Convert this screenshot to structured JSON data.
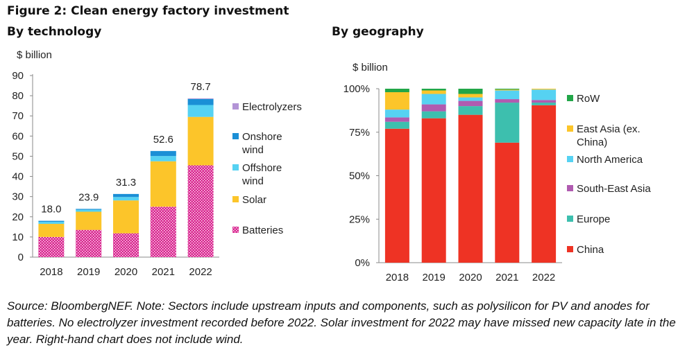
{
  "figure_title": "Figure 2: Clean energy factory investment",
  "source_note": "Source: BloombergNEF. Note: Sectors include upstream inputs and components, such as polysilicon for PV and anodes for batteries. No electrolyzer investment recorded before 2022. Solar investment for 2022 may have missed new capacity late in the year. Right-hand chart does not include wind.",
  "colors": {
    "batteries": "#d9248f",
    "solar": "#fcc52a",
    "offshore": "#56d2f2",
    "onshore": "#1b8fd6",
    "electrolyzers": "#b394d6",
    "china": "#ee3324",
    "europe": "#3dbfae",
    "sea": "#b05bb0",
    "na": "#56d2f2",
    "eastasia": "#fcc52a",
    "row": "#22a648"
  },
  "chart_data": [
    {
      "type": "bar",
      "stacked": true,
      "title": "By technology",
      "ylabel": "$ billion",
      "ylim": [
        0,
        90
      ],
      "yticks": [
        0,
        10,
        20,
        30,
        40,
        50,
        60,
        70,
        80,
        90
      ],
      "categories": [
        "2018",
        "2019",
        "2020",
        "2021",
        "2022"
      ],
      "series": [
        {
          "name": "Batteries",
          "key": "batteries",
          "pattern": true,
          "values": [
            10.0,
            13.5,
            11.8,
            25.0,
            45.5
          ]
        },
        {
          "name": "Solar",
          "key": "solar",
          "values": [
            6.5,
            9.0,
            16.3,
            22.5,
            24.0
          ]
        },
        {
          "name": "Offshore wind",
          "key": "offshore",
          "values": [
            1.0,
            1.0,
            1.7,
            2.6,
            5.9
          ]
        },
        {
          "name": "Onshore wind",
          "key": "onshore",
          "values": [
            0.5,
            0.4,
            1.5,
            2.5,
            3.0
          ]
        },
        {
          "name": "Electrolyzers",
          "key": "electrolyzers",
          "values": [
            0,
            0,
            0,
            0,
            0.3
          ]
        }
      ],
      "totals": [
        "18.0",
        "23.9",
        "31.3",
        "52.6",
        "78.7"
      ],
      "legend_order": [
        "Electrolyzers",
        "Onshore wind",
        "Offshore wind",
        "Solar",
        "Batteries"
      ]
    },
    {
      "type": "bar",
      "stacked": true,
      "percent": true,
      "title": "By geography",
      "ylabel": "$ billion",
      "ylim": [
        0,
        100
      ],
      "ytick_labels": [
        "0%",
        "25%",
        "50%",
        "75%",
        "100%"
      ],
      "categories": [
        "2018",
        "2019",
        "2020",
        "2021",
        "2022"
      ],
      "series": [
        {
          "name": "China",
          "key": "china",
          "values": [
            77,
            83,
            85,
            69,
            90.5
          ]
        },
        {
          "name": "Europe",
          "key": "europe",
          "values": [
            4,
            4,
            5,
            23,
            1.5
          ]
        },
        {
          "name": "South-East Asia",
          "key": "sea",
          "values": [
            2.5,
            4,
            3,
            2,
            1.5
          ]
        },
        {
          "name": "North America",
          "key": "na",
          "values": [
            4.5,
            6,
            2,
            5,
            6
          ]
        },
        {
          "name": "East Asia (ex. China)",
          "key": "eastasia",
          "values": [
            10,
            2,
            2,
            0.5,
            0.5
          ]
        },
        {
          "name": "RoW",
          "key": "row",
          "values": [
            2,
            1,
            3,
            0.5,
            0
          ]
        }
      ],
      "legend_order": [
        "RoW",
        "East Asia (ex. China)",
        "North America",
        "South-East Asia",
        "Europe",
        "China"
      ]
    }
  ]
}
